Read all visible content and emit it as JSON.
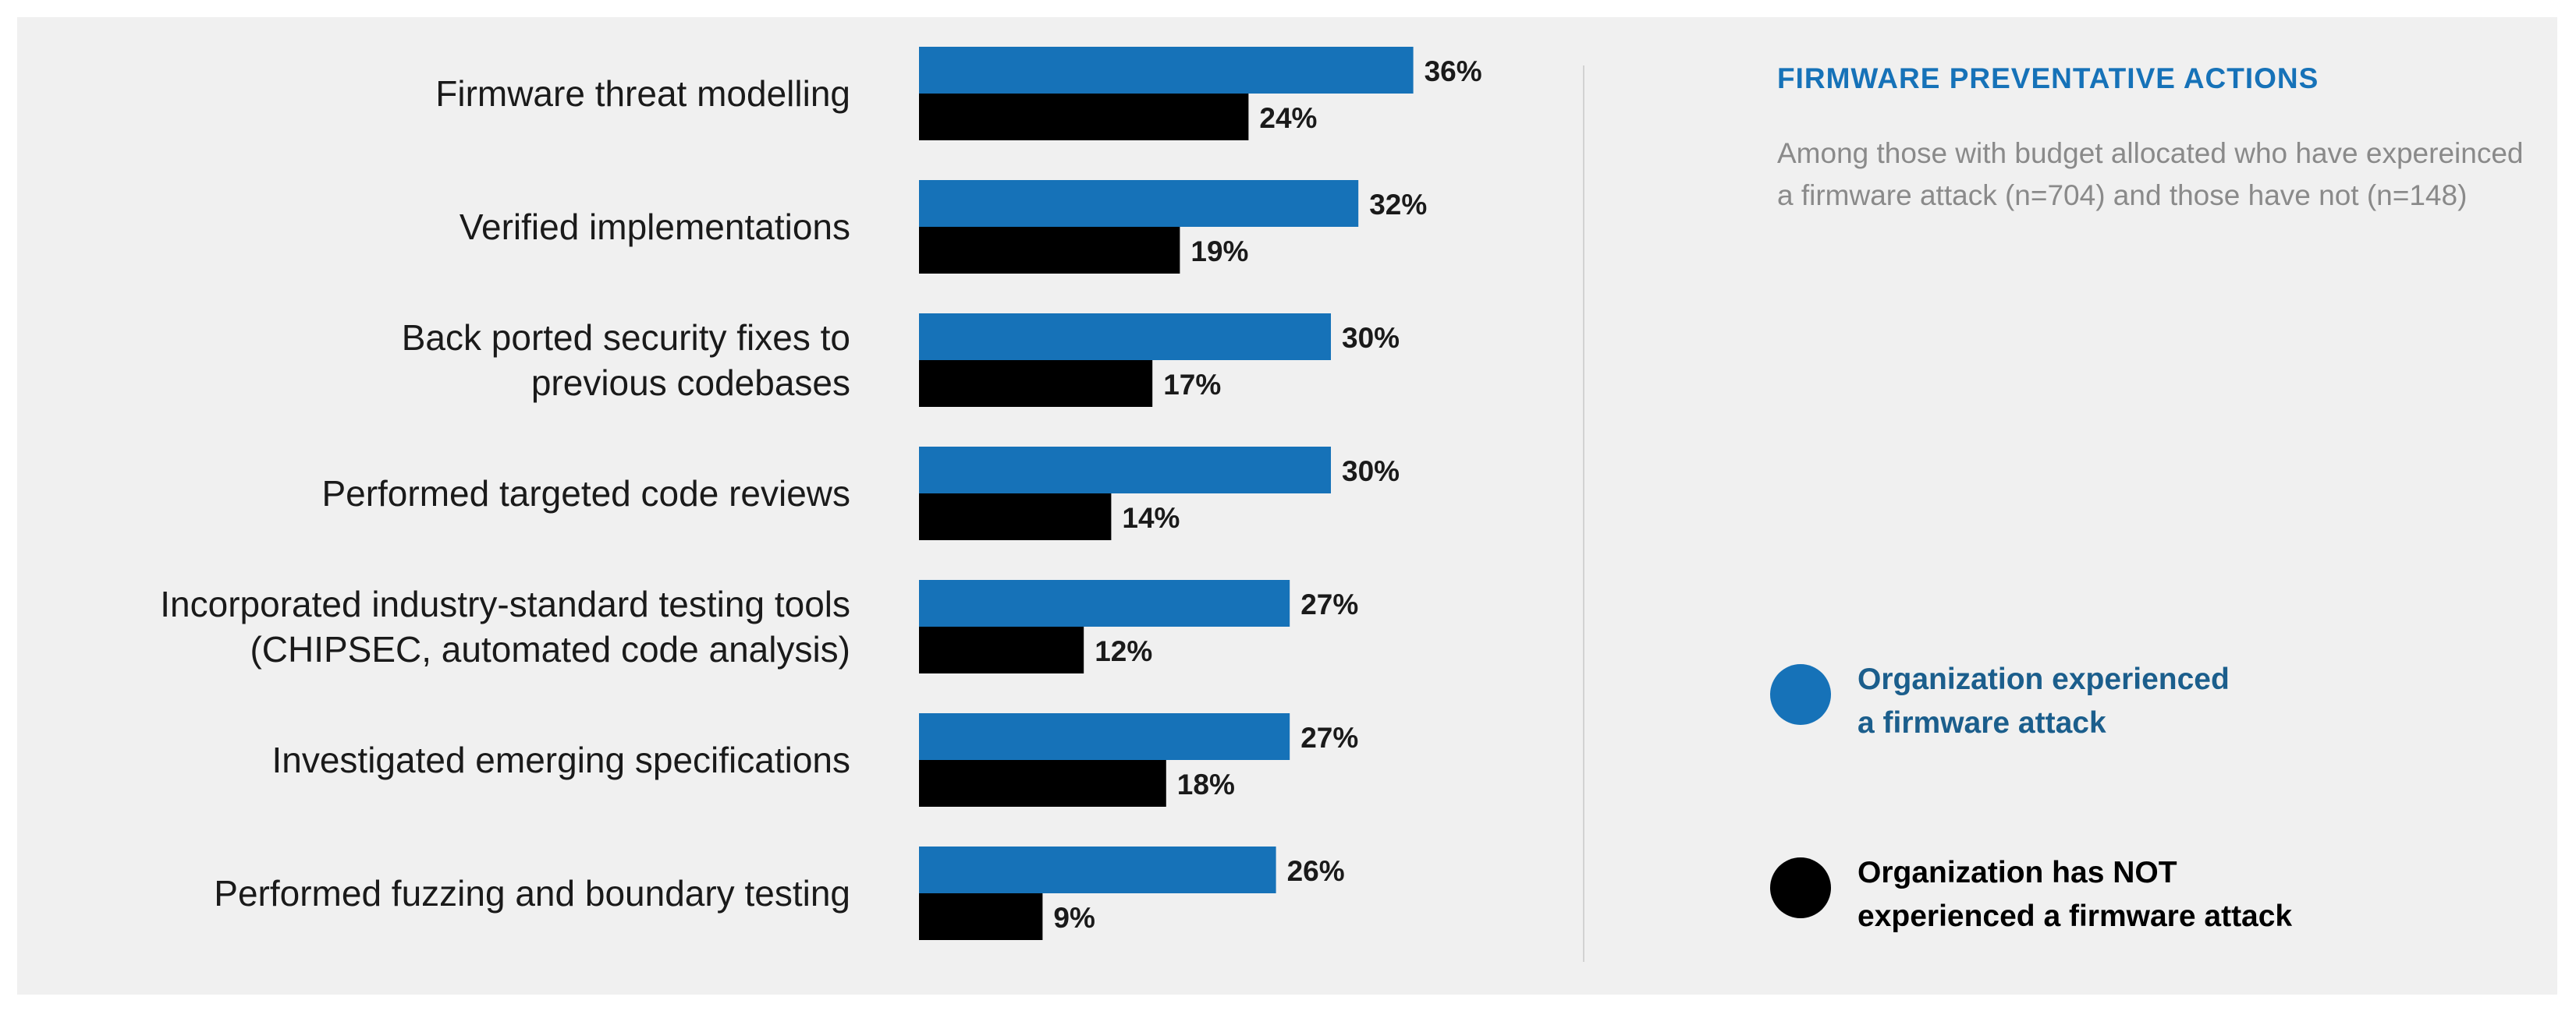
{
  "chart_data": {
    "type": "bar",
    "orientation": "horizontal",
    "title": "FIRMWARE PREVENTATIVE ACTIONS",
    "subtitle": "Among those with budget allocated who have expereinced a firmware attack (n=704) and those have not (n=148)",
    "categories": [
      "Firmware threat modelling",
      "Verified implementations",
      "Back ported security fixes to\nprevious codebases",
      "Performed targeted code reviews",
      "Incorporated industry-standard testing tools\n(CHIPSEC, automated code analysis)",
      "Investigated emerging specifications",
      "Performed fuzzing and boundary testing"
    ],
    "series": [
      {
        "name": "Organization experienced a firmware attack",
        "color": "#1672b8",
        "values": [
          36,
          32,
          30,
          30,
          27,
          27,
          26
        ],
        "labels": [
          "36%",
          "32%",
          "30%",
          "30%",
          "27%",
          "27%",
          "26%"
        ]
      },
      {
        "name": "Organization has NOT experienced a firmware attack",
        "color": "#000000",
        "values": [
          24,
          19,
          17,
          14,
          12,
          18,
          9
        ],
        "labels": [
          "24%",
          "19%",
          "17%",
          "14%",
          "12%",
          "18%",
          "9%"
        ]
      }
    ],
    "unit": "%",
    "legend": {
      "position": "right",
      "items": [
        {
          "line1": "Organization experienced",
          "line2": "a firmware attack",
          "color": "#1672b8",
          "text_color": "#1b5e8c"
        },
        {
          "line1": "Organization has NOT",
          "line2": "experienced a firmware attack",
          "color": "#000000",
          "text_color": "#000000"
        }
      ]
    },
    "grid": false
  }
}
